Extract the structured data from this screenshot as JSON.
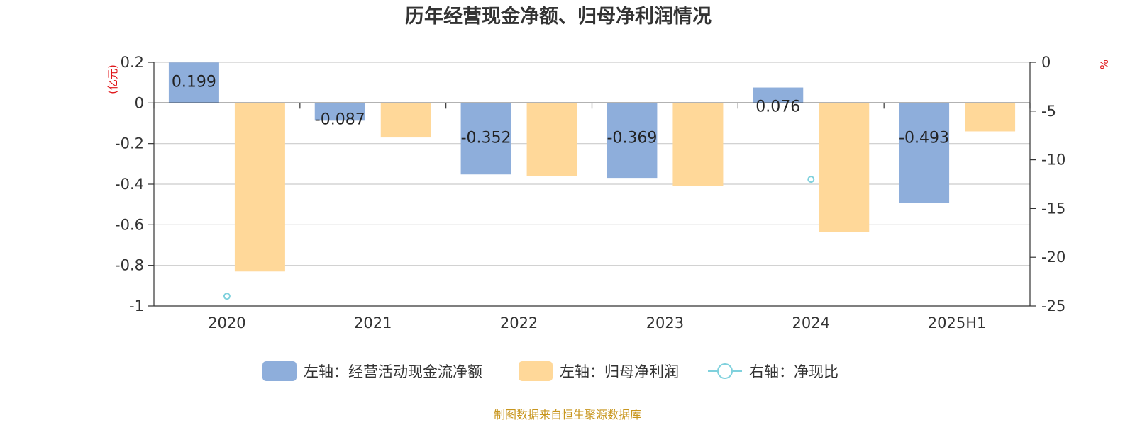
{
  "chart_data": {
    "type": "bar",
    "title": "历年经营现金净额、归母净利润情况",
    "categories": [
      "2020",
      "2021",
      "2022",
      "2023",
      "2024",
      "2025H1"
    ],
    "left_axis": {
      "unit_label": "(亿元)",
      "ylim": [
        -1,
        0.2
      ],
      "ticks": [
        "0.2",
        "0",
        "-0.2",
        "-0.4",
        "-0.6",
        "-0.8",
        "-1"
      ]
    },
    "right_axis": {
      "unit_label": "%",
      "ylim": [
        -25,
        0
      ],
      "ticks": [
        "0",
        "-5",
        "-10",
        "-15",
        "-20",
        "-25"
      ]
    },
    "series": [
      {
        "name": "左轴：经营活动现金流净额",
        "type": "bar",
        "axis": "left",
        "color": "#8eaedb",
        "values": [
          0.199,
          -0.087,
          -0.352,
          -0.369,
          0.076,
          -0.493
        ],
        "labels": [
          "0.199",
          "-0.087",
          "-0.352",
          "-0.369",
          "0.076",
          "-0.493"
        ]
      },
      {
        "name": "左轴：归母净利润",
        "type": "bar",
        "axis": "left",
        "color": "#ffd899",
        "values": [
          -0.83,
          -0.17,
          -0.36,
          -0.41,
          -0.635,
          -0.14
        ]
      },
      {
        "name": "右轴：净现比",
        "type": "scatter",
        "axis": "right",
        "color": "#7fd1dd",
        "values": [
          -24,
          null,
          null,
          null,
          -12,
          null
        ]
      }
    ],
    "grid": true,
    "legend_position": "bottom"
  },
  "source": "制图数据来自恒生聚源数据库"
}
